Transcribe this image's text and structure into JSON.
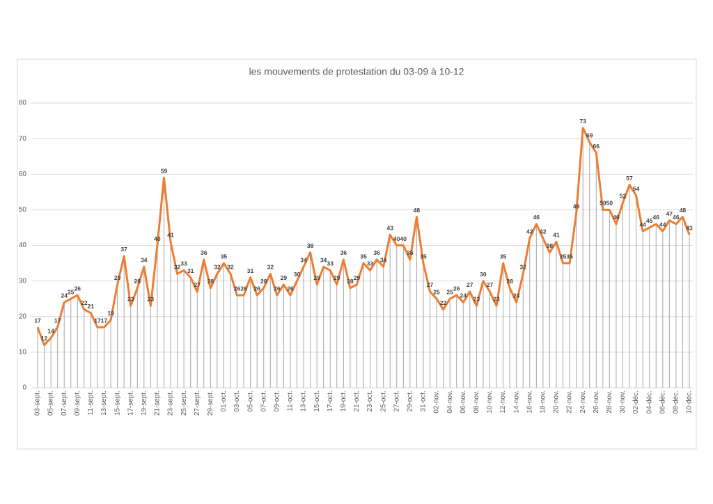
{
  "chart_data": {
    "type": "line",
    "title": "les mouvements de protestation du 03-09 à 10-12",
    "categories": [
      "03-sept.",
      null,
      "05-sept.",
      null,
      "07-sept.",
      null,
      "09-sept.",
      null,
      "11-sept.",
      null,
      "13-sept.",
      null,
      "15-sept.",
      null,
      "17-sept.",
      null,
      "19-sept.",
      null,
      "21-sept.",
      null,
      "23-sept.",
      null,
      "25-sept.",
      null,
      "27-sept.",
      null,
      "29-sept.",
      null,
      "01-oct.",
      null,
      "03-oct.",
      null,
      "05-oct.",
      null,
      "07-oct.",
      null,
      "09-oct.",
      null,
      "11-oct.",
      null,
      "13-oct.",
      null,
      "15-oct.",
      null,
      "17-oct.",
      null,
      "19-oct.",
      null,
      "21-oct.",
      null,
      "23-oct.",
      null,
      "25-oct.",
      null,
      "27-oct.",
      null,
      "29-oct.",
      null,
      "31-oct.",
      null,
      "02-nov.",
      null,
      "04-nov.",
      null,
      "06-nov.",
      null,
      "08-nov.",
      null,
      "10-nov.",
      null,
      "12-nov.",
      null,
      "14-nov.",
      null,
      "16-nov.",
      null,
      "18-nov.",
      null,
      "20-nov.",
      null,
      "22-nov.",
      null,
      "24-nov.",
      null,
      "26-nov.",
      null,
      "28-nov.",
      null,
      "30-nov.",
      null,
      "02-déc.",
      null,
      "04-déc.",
      null,
      "06-déc.",
      null,
      "08-déc.",
      null,
      "10-déc."
    ],
    "values": [
      17,
      12,
      14,
      17,
      24,
      25,
      26,
      22,
      21,
      17,
      17,
      19,
      29,
      37,
      23,
      28,
      34,
      23,
      40,
      59,
      41,
      32,
      33,
      31,
      27,
      36,
      28,
      32,
      35,
      32,
      26,
      26,
      31,
      26,
      28,
      32,
      26,
      29,
      26,
      30,
      34,
      38,
      29,
      34,
      33,
      29,
      36,
      28,
      29,
      35,
      33,
      36,
      34,
      43,
      40,
      40,
      36,
      48,
      35,
      27,
      25,
      22,
      25,
      26,
      24,
      27,
      23,
      30,
      27,
      23,
      35,
      28,
      24,
      32,
      42,
      46,
      42,
      38,
      41,
      35,
      35,
      49,
      73,
      69,
      66,
      50,
      50,
      46,
      52,
      57,
      54,
      44,
      45,
      46,
      44,
      47,
      46,
      48,
      43
    ],
    "color": "#ed7d31",
    "drop_line_color": "#a6a6a6",
    "ylim": [
      0,
      80
    ],
    "yticks": [
      0,
      10,
      20,
      30,
      40,
      50,
      60,
      70,
      80
    ],
    "grid": true
  }
}
